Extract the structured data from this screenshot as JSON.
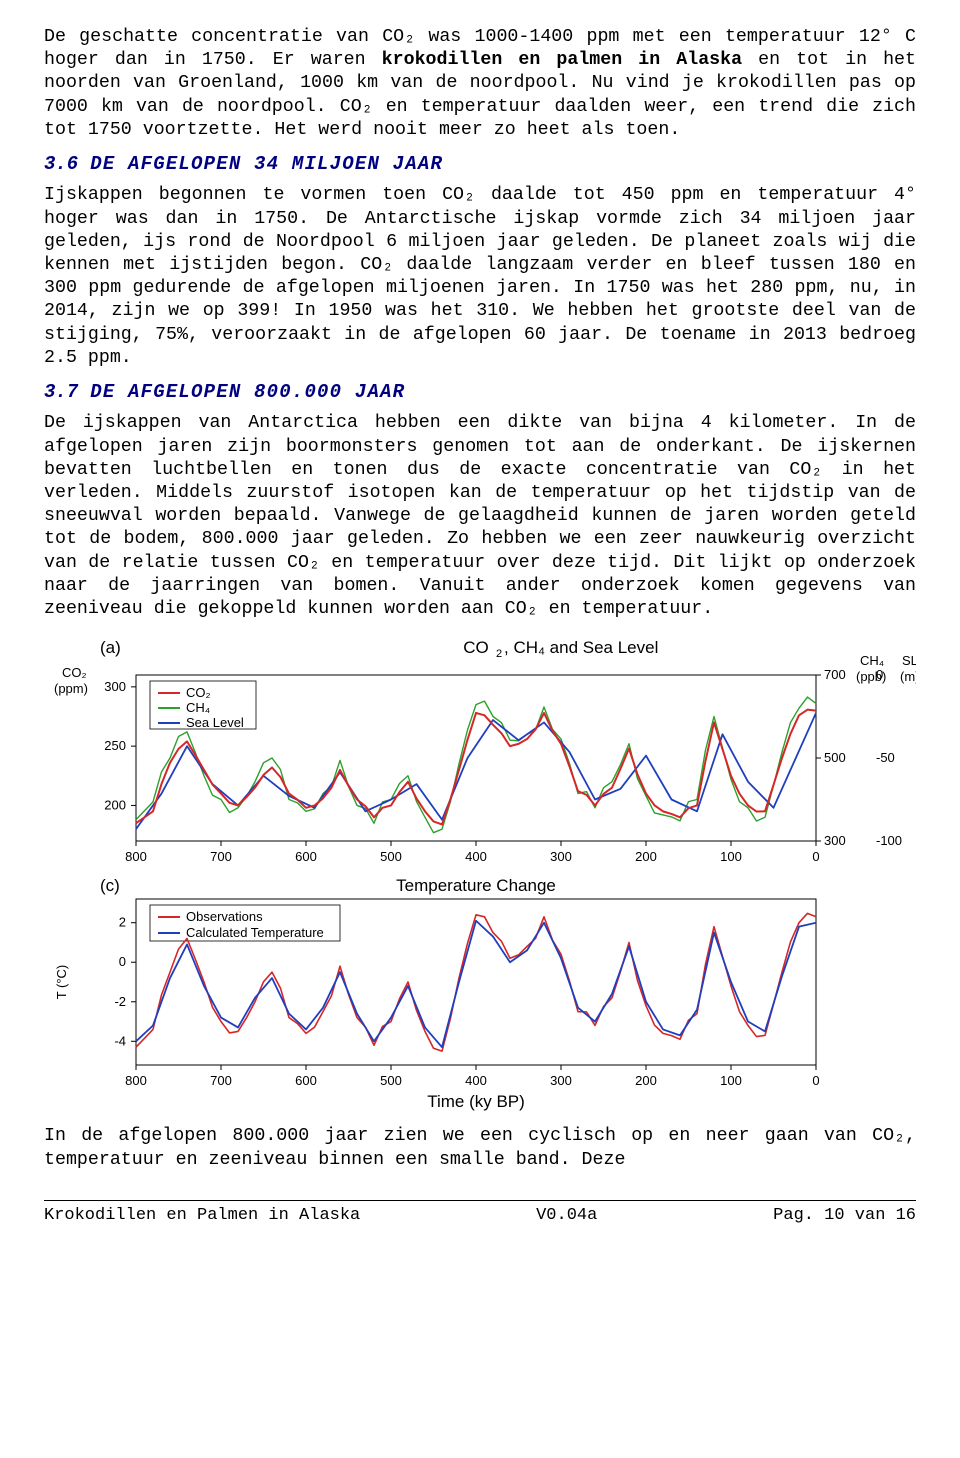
{
  "text": {
    "p1a": "De geschatte concentratie van CO₂ was 1000-1400 ppm met een temperatuur 12° C hoger dan in 1750. Er waren ",
    "p1b": "krokodillen en palmen in Alaska",
    "p1c": " en tot in het noorden van Groenland, 1000 km van de noordpool. Nu vind je krokodillen pas op 7000 km van de noordpool. CO₂ en temperatuur daalden weer, een trend die zich tot 1750 voortzette. Het werd nooit meer zo heet als toen.",
    "h36_num": "3.6",
    "h36": "DE AFGELOPEN 34 MILJOEN JAAR",
    "p2": "Ijskappen begonnen te vormen toen CO₂ daalde tot 450 ppm en temperatuur 4° hoger was dan in 1750. De Antarctische ijskap vormde zich 34 miljoen jaar geleden, ijs rond de Noordpool 6 miljoen jaar geleden. De planeet zoals wij die kennen met ijstijden begon. CO₂ daalde langzaam verder en bleef tussen 180 en 300 ppm gedurende de afgelopen miljoenen jaren. In 1750 was het 280 ppm, nu, in 2014, zijn we op 399! In 1950 was het 310. We hebben het grootste deel van de stijging, 75%, veroorzaakt in de afgelopen 60 jaar. De toename in 2013 bedroeg 2.5 ppm.",
    "h37_num": "3.7",
    "h37": "DE AFGELOPEN 800.000 JAAR",
    "p3": "De ijskappen van Antarctica hebben een dikte van bijna 4 kilometer. In de afgelopen jaren zijn boormonsters genomen tot aan de onderkant. De ijskernen bevatten luchtbellen en tonen dus de exacte concentratie van CO₂ in het verleden. Middels zuurstof isotopen kan de temperatuur op het tijdstip van de sneeuwval worden bepaald. Vanwege de gelaagdheid kunnen de jaren worden geteld tot de bodem, 800.000 jaar geleden. Zo hebben we een zeer nauwkeurig overzicht van de relatie tussen CO₂ en temperatuur over deze tijd. Dit lijkt op onderzoek naar de jaarringen van bomen. Vanuit ander onderzoek komen gegevens van zeeniveau die gekoppeld kunnen worden aan CO₂ en temperatuur.",
    "p4": "In de afgelopen 800.000 jaar zien we een cyclisch op en neer gaan van CO₂, temperatuur en zeeniveau binnen een smalle band. Deze"
  },
  "chartA": {
    "panel_letter": "(a)",
    "title": "CO₂, CH₄ and Sea Level",
    "left_label": "CO₂\n(ppm)",
    "right_label_ch4": "CH₄\n(ppb)",
    "right_label_sl": "SL\n(m)",
    "y_ticks": [
      200,
      250,
      300
    ],
    "y_right_ch4": [
      300,
      500,
      700
    ],
    "y_right_sl": [
      -100,
      -50,
      0
    ],
    "x_ticks": [
      800,
      700,
      600,
      500,
      400,
      300,
      200,
      100,
      0
    ],
    "legend": [
      {
        "label": "CO₂",
        "color": "#d62728"
      },
      {
        "label": "CH₄",
        "color": "#2ca02c"
      },
      {
        "label": "Sea Level",
        "color": "#1f3fbf"
      }
    ],
    "colors": {
      "co2": "#d62728",
      "ch4": "#2ca02c",
      "sl": "#1f3fbf",
      "axis": "#000000",
      "bg": "#ffffff"
    },
    "ylim": [
      170,
      310
    ],
    "series": {
      "co2": {
        "x": [
          800,
          780,
          760,
          740,
          720,
          700,
          680,
          660,
          640,
          620,
          600,
          580,
          560,
          540,
          520,
          500,
          480,
          460,
          440,
          420,
          400,
          380,
          360,
          340,
          320,
          300,
          280,
          260,
          240,
          220,
          200,
          180,
          160,
          140,
          120,
          100,
          80,
          60,
          40,
          20,
          0
        ],
        "y": [
          185,
          195,
          236,
          254,
          230,
          210,
          200,
          215,
          232,
          210,
          198,
          206,
          230,
          205,
          190,
          200,
          220,
          195,
          184,
          230,
          278,
          268,
          250,
          256,
          278,
          252,
          212,
          200,
          215,
          248,
          210,
          195,
          190,
          200,
          270,
          225,
          200,
          195,
          240,
          276,
          280
        ]
      },
      "ch4": {
        "x": [
          800,
          780,
          760,
          740,
          720,
          700,
          680,
          660,
          640,
          620,
          600,
          580,
          560,
          540,
          520,
          500,
          480,
          460,
          440,
          420,
          400,
          380,
          360,
          340,
          320,
          300,
          280,
          260,
          240,
          220,
          200,
          180,
          160,
          140,
          120,
          100,
          80,
          60,
          40,
          20,
          0
        ],
        "y": [
          188,
          203,
          240,
          262,
          225,
          205,
          198,
          220,
          240,
          205,
          195,
          210,
          238,
          200,
          185,
          205,
          225,
          190,
          180,
          235,
          285,
          275,
          255,
          260,
          283,
          256,
          210,
          198,
          220,
          252,
          208,
          192,
          187,
          205,
          275,
          222,
          198,
          190,
          245,
          282,
          286
        ]
      },
      "sl": {
        "x": [
          800,
          770,
          740,
          710,
          680,
          650,
          620,
          590,
          560,
          530,
          500,
          470,
          440,
          410,
          380,
          350,
          320,
          290,
          260,
          230,
          200,
          170,
          140,
          110,
          80,
          50,
          20,
          0
        ],
        "y": [
          180,
          210,
          250,
          218,
          200,
          225,
          208,
          198,
          228,
          195,
          205,
          218,
          188,
          240,
          272,
          255,
          270,
          245,
          205,
          214,
          242,
          205,
          195,
          260,
          220,
          198,
          246,
          278
        ]
      }
    }
  },
  "chartC": {
    "panel_letter": "(c)",
    "title": "Temperature Change",
    "left_label": "T (°C)",
    "y_ticks": [
      -4,
      -2,
      0,
      2
    ],
    "x_ticks": [
      800,
      700,
      600,
      500,
      400,
      300,
      200,
      100,
      0
    ],
    "x_axis_title": "Time (ky BP)",
    "legend": [
      {
        "label": "Observations",
        "color": "#d62728"
      },
      {
        "label": "Calculated Temperature",
        "color": "#1f3fbf"
      }
    ],
    "colors": {
      "obs": "#d62728",
      "calc": "#1f3fbf",
      "axis": "#000000"
    },
    "ylim": [
      -5.2,
      3.2
    ],
    "series": {
      "obs": {
        "x": [
          800,
          780,
          760,
          740,
          720,
          700,
          680,
          660,
          640,
          620,
          600,
          580,
          560,
          540,
          520,
          500,
          480,
          460,
          440,
          420,
          400,
          380,
          360,
          340,
          320,
          300,
          280,
          260,
          240,
          220,
          200,
          180,
          160,
          140,
          120,
          100,
          80,
          60,
          40,
          20,
          0
        ],
        "y": [
          -4.3,
          -3.4,
          -0.5,
          1.2,
          -1.0,
          -3.0,
          -3.5,
          -2.0,
          -0.5,
          -2.8,
          -3.6,
          -2.5,
          -0.2,
          -2.8,
          -4.2,
          -3.0,
          -1.0,
          -3.5,
          -4.5,
          -0.8,
          2.4,
          1.5,
          0.2,
          0.8,
          2.3,
          0.4,
          -2.5,
          -3.2,
          -1.8,
          1.0,
          -2.2,
          -3.6,
          -3.9,
          -2.6,
          1.8,
          -1.2,
          -3.2,
          -3.7,
          -0.5,
          2.0,
          2.3
        ]
      },
      "calc": {
        "x": [
          800,
          780,
          760,
          740,
          720,
          700,
          680,
          660,
          640,
          620,
          600,
          580,
          560,
          540,
          520,
          500,
          480,
          460,
          440,
          420,
          400,
          380,
          360,
          340,
          320,
          300,
          280,
          260,
          240,
          220,
          200,
          180,
          160,
          140,
          120,
          100,
          80,
          60,
          40,
          20,
          0
        ],
        "y": [
          -4.0,
          -3.2,
          -0.8,
          0.9,
          -1.2,
          -2.8,
          -3.3,
          -1.8,
          -0.8,
          -2.6,
          -3.4,
          -2.3,
          -0.5,
          -2.6,
          -4.0,
          -2.8,
          -1.2,
          -3.3,
          -4.3,
          -1.0,
          2.1,
          1.3,
          0.0,
          0.6,
          2.0,
          0.2,
          -2.3,
          -3.0,
          -1.6,
          0.8,
          -2.0,
          -3.4,
          -3.7,
          -2.4,
          1.5,
          -1.0,
          -3.0,
          -3.5,
          -0.7,
          1.8,
          2.0
        ]
      }
    }
  },
  "footer": {
    "left": "Krokodillen en Palmen in Alaska",
    "center": "V0.04a",
    "right": "Pag. 10 van 16"
  }
}
